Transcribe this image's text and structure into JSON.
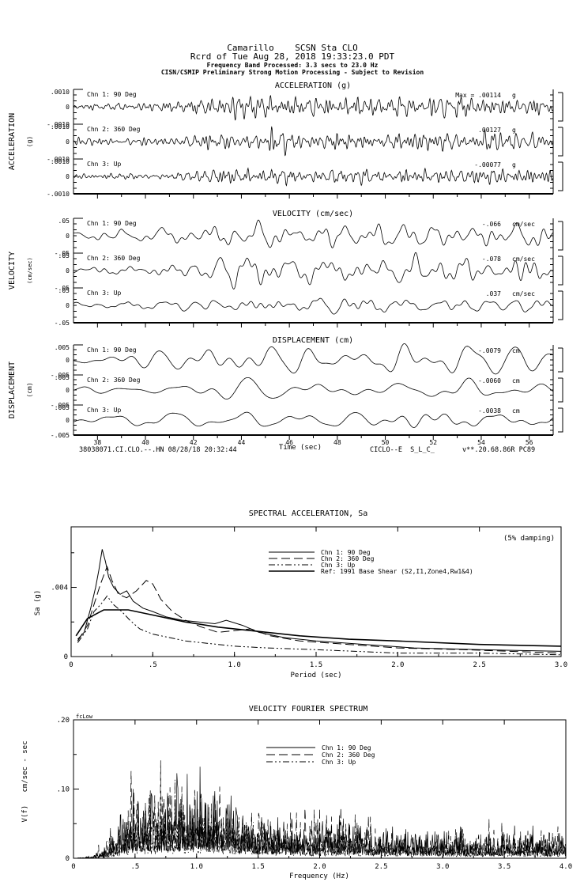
{
  "header": {
    "line1": "Camarillo    SCSN Sta CLO",
    "line2": "Rcrd of Tue Aug 28, 2018 19:33:23.0 PDT",
    "line3": "Frequency Band Processed: 3.3 secs to 23.0 Hz",
    "line4": "CISN/CSMIP Preliminary Strong Motion Processing - Subject to Revision"
  },
  "time_series": {
    "panels": [
      {
        "title": "ACCELERATION (g)",
        "side_label": "ACCELERATION",
        "side_unit": "(g)",
        "ytop": ".0010",
        "yzero": "0",
        "ybottom": "-.0010",
        "channels": [
          {
            "label": "Chn 1: 90 Deg",
            "max_prefix": "Max =  ",
            "max_value": ".00114",
            "max_unit": "g"
          },
          {
            "label": "Chn 2: 360 Deg",
            "max_prefix": "",
            "max_value": ".00127",
            "max_unit": "g"
          },
          {
            "label": "Chn 3: Up",
            "max_prefix": "",
            "max_value": "-.00077",
            "max_unit": "g"
          }
        ]
      },
      {
        "title": "VELOCITY (cm/sec)",
        "side_label": "VELOCITY",
        "side_unit": "(cm/sec)",
        "ytop": ".05",
        "yzero": "0",
        "ybottom": "-.05",
        "channels": [
          {
            "label": "Chn 1: 90 Deg",
            "max_prefix": "",
            "max_value": "-.066",
            "max_unit": "cm/sec"
          },
          {
            "label": "Chn 2: 360 Deg",
            "max_prefix": "",
            "max_value": "-.078",
            "max_unit": "cm/sec"
          },
          {
            "label": "Chn 3: Up",
            "max_prefix": "",
            "max_value": ".037",
            "max_unit": "cm/sec"
          }
        ]
      },
      {
        "title": "DISPLACEMENT (cm)",
        "side_label": "DISPLACEMENT",
        "side_unit": "(cm)",
        "ytop": ".005",
        "yzero": "0",
        "ybottom": "-.005",
        "channels": [
          {
            "label": "Chn 1: 90 Deg",
            "max_prefix": "",
            "max_value": "-.0079",
            "max_unit": "cm"
          },
          {
            "label": "Chn 2: 360 Deg",
            "max_prefix": "",
            "max_value": "-.0060",
            "max_unit": "cm"
          },
          {
            "label": "Chn 3: Up",
            "max_prefix": "",
            "max_value": "-.0038",
            "max_unit": "cm"
          }
        ]
      }
    ],
    "time_axis": {
      "label": "Time (sec)",
      "tick_labels": [
        "38",
        "40",
        "42",
        "44",
        "46",
        "48",
        "50",
        "52",
        "54",
        "56"
      ],
      "tick_values": [
        38,
        40,
        42,
        44,
        46,
        48,
        50,
        52,
        54,
        56
      ]
    }
  },
  "footer": {
    "left": "38038071.CI.CLO.--.HN 08/28/18 20:32:44",
    "center": "CICLO--E  S_L_C_",
    "right": "v**.20.68.86R PC89"
  },
  "spectral": {
    "title": "SPECTRAL ACCELERATION, Sa",
    "damping_note": "(5% damping)",
    "ylabel": "Sa (g)",
    "xlabel": "Period (sec)",
    "yticks": [
      {
        "l": "0",
        "v": 0
      },
      {
        "l": ".004",
        "v": 0.004
      }
    ],
    "yminor": [
      0.002,
      0.006
    ],
    "xticks": [
      {
        "l": "0",
        "v": 0
      },
      {
        "l": ".5",
        "v": 0.5
      },
      {
        "l": "1.0",
        "v": 1.0
      },
      {
        "l": "1.5",
        "v": 1.5
      },
      {
        "l": "2.0",
        "v": 2.0
      },
      {
        "l": "2.5",
        "v": 2.5
      },
      {
        "l": "3.0",
        "v": 3.0
      }
    ],
    "legend": [
      {
        "label": "Chn 1: 90 Deg",
        "dash": "none",
        "color": "#000",
        "width": 1
      },
      {
        "label": "Chn 2: 360 Deg",
        "dash": "long",
        "color": "#000",
        "width": 1
      },
      {
        "label": "Chn 3: Up",
        "dash": "dashdot",
        "color": "#000",
        "width": 1
      },
      {
        "label": "Ref: 1991 Base Shear (S2,I1,Zone4,Rw1&4)",
        "dash": "none",
        "color": "#666",
        "width": 1.6
      }
    ]
  },
  "fourier": {
    "title": "VELOCITY FOURIER SPECTRUM",
    "annotation": "fcLow",
    "ylabel": "V(f)   cm/sec - sec",
    "xlabel": "Frequency (Hz)",
    "yticks": [
      {
        "l": "0",
        "v": 0
      },
      {
        "l": ".10",
        "v": 0.1
      },
      {
        "l": ".20",
        "v": 0.2
      }
    ],
    "yminor": [
      0.05,
      0.15
    ],
    "xticks": [
      {
        "l": "0",
        "v": 0
      },
      {
        "l": ".5",
        "v": 0.5
      },
      {
        "l": "1.0",
        "v": 1.0
      },
      {
        "l": "1.5",
        "v": 1.5
      },
      {
        "l": "2.0",
        "v": 2.0
      },
      {
        "l": "2.5",
        "v": 2.5
      },
      {
        "l": "3.0",
        "v": 3.0
      },
      {
        "l": "3.5",
        "v": 3.5
      },
      {
        "l": "4.0",
        "v": 4.0
      }
    ],
    "legend": [
      {
        "label": "Chn 1: 90 Deg",
        "dash": "none",
        "color": "#000",
        "width": 1
      },
      {
        "label": "Chn 2: 360 Deg",
        "dash": "long",
        "color": "#000",
        "width": 1
      },
      {
        "label": "Chn 3: Up",
        "dash": "dashdot",
        "color": "#000",
        "width": 1
      }
    ]
  },
  "chart_data": [
    {
      "type": "line",
      "subtype": "seismic-waveform",
      "title": "ACCELERATION (g)",
      "xlim": [
        37,
        57
      ],
      "ylim": [
        -0.001,
        0.001
      ],
      "series": [
        {
          "name": "Chn 1: 90 Deg",
          "peak": 0.00114,
          "unit": "g"
        },
        {
          "name": "Chn 2: 360 Deg",
          "peak": 0.00127,
          "unit": "g"
        },
        {
          "name": "Chn 3: Up",
          "peak": 0.00077,
          "unit": "g"
        }
      ],
      "synthesis": {
        "band_hz": [
          2.0,
          9.0
        ],
        "seed": 7,
        "envelope": [
          [
            37,
            0.3
          ],
          [
            40,
            0.35
          ],
          [
            41.5,
            0.5
          ],
          [
            43,
            0.95
          ],
          [
            45,
            1.0
          ],
          [
            47,
            0.9
          ],
          [
            50,
            0.8
          ],
          [
            53,
            0.85
          ],
          [
            57,
            0.75
          ]
        ]
      }
    },
    {
      "type": "line",
      "subtype": "seismic-waveform",
      "title": "VELOCITY (cm/sec)",
      "xlim": [
        37,
        57
      ],
      "ylim": [
        -0.05,
        0.05
      ],
      "series": [
        {
          "name": "Chn 1: 90 Deg",
          "peak": 0.066,
          "unit": "cm/sec"
        },
        {
          "name": "Chn 2: 360 Deg",
          "peak": 0.078,
          "unit": "cm/sec"
        },
        {
          "name": "Chn 3: Up",
          "peak": 0.037,
          "unit": "cm/sec"
        }
      ],
      "synthesis": {
        "band_hz": [
          0.5,
          3.0
        ],
        "seed": 8,
        "envelope": [
          [
            37,
            0.3
          ],
          [
            40,
            0.4
          ],
          [
            42,
            0.7
          ],
          [
            44,
            1.0
          ],
          [
            46,
            0.9
          ],
          [
            49,
            0.95
          ],
          [
            52,
            0.85
          ],
          [
            57,
            0.9
          ]
        ]
      }
    },
    {
      "type": "line",
      "subtype": "seismic-waveform",
      "title": "DISPLACEMENT (cm)",
      "xlim": [
        37,
        57
      ],
      "ylim": [
        -0.005,
        0.005
      ],
      "series": [
        {
          "name": "Chn 1: 90 Deg",
          "peak": 0.0079,
          "unit": "cm"
        },
        {
          "name": "Chn 2: 360 Deg",
          "peak": 0.006,
          "unit": "cm"
        },
        {
          "name": "Chn 3: Up",
          "peak": 0.0038,
          "unit": "cm"
        }
      ],
      "synthesis": {
        "band_hz": [
          0.3,
          1.3
        ],
        "seed": 9,
        "envelope": [
          [
            37,
            0.4
          ],
          [
            40,
            0.55
          ],
          [
            41,
            0.8
          ],
          [
            43,
            1.0
          ],
          [
            45,
            0.9
          ],
          [
            48,
            0.95
          ],
          [
            51,
            1.0
          ],
          [
            54,
            0.9
          ],
          [
            57,
            0.95
          ]
        ]
      }
    },
    {
      "type": "line",
      "subtype": "response-spectrum",
      "title": "SPECTRAL ACCELERATION, Sa",
      "xlabel": "Period (sec)",
      "ylabel": "Sa (g)",
      "xlim": [
        0,
        3
      ],
      "ylim": [
        0,
        0.0075
      ],
      "damping": "5%",
      "series": [
        {
          "name": "Chn 1: 90 Deg",
          "points": [
            [
              0.04,
              0.001
            ],
            [
              0.08,
              0.0014
            ],
            [
              0.12,
              0.0028
            ],
            [
              0.15,
              0.004
            ],
            [
              0.17,
              0.005
            ],
            [
              0.19,
              0.0062
            ],
            [
              0.21,
              0.0055
            ],
            [
              0.23,
              0.0046
            ],
            [
              0.26,
              0.004
            ],
            [
              0.3,
              0.0036
            ],
            [
              0.34,
              0.0038
            ],
            [
              0.38,
              0.0032
            ],
            [
              0.44,
              0.0028
            ],
            [
              0.5,
              0.0026
            ],
            [
              0.58,
              0.0023
            ],
            [
              0.68,
              0.0021
            ],
            [
              0.78,
              0.002
            ],
            [
              0.88,
              0.0019
            ],
            [
              0.95,
              0.0021
            ],
            [
              1.05,
              0.0018
            ],
            [
              1.15,
              0.0014
            ],
            [
              1.3,
              0.0011
            ],
            [
              1.5,
              0.0009
            ],
            [
              1.8,
              0.0007
            ],
            [
              2.1,
              0.0005
            ],
            [
              2.5,
              0.0004
            ],
            [
              3.0,
              0.0003
            ]
          ]
        },
        {
          "name": "Chn 2: 360 Deg",
          "points": [
            [
              0.04,
              0.0009
            ],
            [
              0.1,
              0.0018
            ],
            [
              0.14,
              0.003
            ],
            [
              0.18,
              0.0042
            ],
            [
              0.22,
              0.0052
            ],
            [
              0.25,
              0.0044
            ],
            [
              0.29,
              0.0036
            ],
            [
              0.34,
              0.0034
            ],
            [
              0.4,
              0.0038
            ],
            [
              0.46,
              0.0044
            ],
            [
              0.5,
              0.0042
            ],
            [
              0.55,
              0.0033
            ],
            [
              0.62,
              0.0026
            ],
            [
              0.7,
              0.0021
            ],
            [
              0.8,
              0.0017
            ],
            [
              0.9,
              0.0014
            ],
            [
              1.0,
              0.0015
            ],
            [
              1.1,
              0.0016
            ],
            [
              1.22,
              0.0012
            ],
            [
              1.4,
              0.0009
            ],
            [
              1.7,
              0.0007
            ],
            [
              2.0,
              0.0005
            ],
            [
              2.4,
              0.0004
            ],
            [
              3.0,
              0.0002
            ]
          ]
        },
        {
          "name": "Chn 3: Up",
          "points": [
            [
              0.04,
              0.0008
            ],
            [
              0.1,
              0.0016
            ],
            [
              0.14,
              0.0026
            ],
            [
              0.18,
              0.003
            ],
            [
              0.22,
              0.0035
            ],
            [
              0.26,
              0.003
            ],
            [
              0.31,
              0.0026
            ],
            [
              0.36,
              0.0021
            ],
            [
              0.42,
              0.0016
            ],
            [
              0.5,
              0.0013
            ],
            [
              0.6,
              0.0011
            ],
            [
              0.7,
              0.0009
            ],
            [
              0.8,
              0.0008
            ],
            [
              0.9,
              0.0007
            ],
            [
              1.0,
              0.0006
            ],
            [
              1.2,
              0.0005
            ],
            [
              1.5,
              0.0004
            ],
            [
              2.0,
              0.0002
            ],
            [
              2.5,
              0.0002
            ],
            [
              3.0,
              0.0001
            ]
          ]
        },
        {
          "name": "Ref: 1991 Base Shear (S2,I1,Zone4,Rw1&4)",
          "points": [
            [
              0.03,
              0.0012
            ],
            [
              0.1,
              0.0022
            ],
            [
              0.2,
              0.0027
            ],
            [
              0.35,
              0.0027
            ],
            [
              0.5,
              0.0024
            ],
            [
              0.7,
              0.002
            ],
            [
              0.9,
              0.0017
            ],
            [
              1.1,
              0.0015
            ],
            [
              1.4,
              0.0012
            ],
            [
              1.7,
              0.001
            ],
            [
              2.0,
              0.0009
            ],
            [
              2.5,
              0.0007
            ],
            [
              3.0,
              0.0006
            ]
          ]
        }
      ]
    },
    {
      "type": "line",
      "subtype": "fourier-spectrum",
      "title": "VELOCITY FOURIER SPECTRUM",
      "xlabel": "Frequency (Hz)",
      "ylabel": "V(f) cm/sec - sec",
      "xlim": [
        0,
        4
      ],
      "ylim": [
        0,
        0.2
      ],
      "series": [
        {
          "name": "Chn 1: 90 Deg",
          "seed": 101,
          "envelope": [
            [
              0,
              0
            ],
            [
              0.15,
              0.002
            ],
            [
              0.25,
              0.008
            ],
            [
              0.35,
              0.03
            ],
            [
              0.45,
              0.055
            ],
            [
              0.55,
              0.06
            ],
            [
              0.7,
              0.065
            ],
            [
              0.9,
              0.07
            ],
            [
              1.1,
              0.065
            ],
            [
              1.3,
              0.05
            ],
            [
              1.5,
              0.035
            ],
            [
              1.8,
              0.03
            ],
            [
              2.1,
              0.03
            ],
            [
              2.4,
              0.028
            ],
            [
              2.7,
              0.022
            ],
            [
              3.0,
              0.022
            ],
            [
              3.3,
              0.02
            ],
            [
              3.6,
              0.022
            ],
            [
              4.0,
              0.02
            ]
          ]
        },
        {
          "name": "Chn 2: 360 Deg",
          "seed": 202,
          "envelope": [
            [
              0,
              0
            ],
            [
              0.15,
              0.002
            ],
            [
              0.25,
              0.01
            ],
            [
              0.35,
              0.035
            ],
            [
              0.5,
              0.06
            ],
            [
              0.7,
              0.065
            ],
            [
              0.9,
              0.068
            ],
            [
              1.1,
              0.06
            ],
            [
              1.3,
              0.045
            ],
            [
              1.6,
              0.035
            ],
            [
              1.9,
              0.04
            ],
            [
              2.15,
              0.05
            ],
            [
              2.35,
              0.04
            ],
            [
              2.6,
              0.025
            ],
            [
              3.0,
              0.022
            ],
            [
              3.4,
              0.025
            ],
            [
              3.7,
              0.028
            ],
            [
              4.0,
              0.025
            ]
          ]
        },
        {
          "name": "Chn 3: Up",
          "seed": 303,
          "envelope": [
            [
              0,
              0
            ],
            [
              0.15,
              0.001
            ],
            [
              0.25,
              0.006
            ],
            [
              0.35,
              0.02
            ],
            [
              0.5,
              0.035
            ],
            [
              0.7,
              0.04
            ],
            [
              0.9,
              0.042
            ],
            [
              1.1,
              0.04
            ],
            [
              1.3,
              0.035
            ],
            [
              1.6,
              0.025
            ],
            [
              2.0,
              0.022
            ],
            [
              2.4,
              0.02
            ],
            [
              2.8,
              0.016
            ],
            [
              3.2,
              0.015
            ],
            [
              3.6,
              0.015
            ],
            [
              4.0,
              0.014
            ]
          ]
        }
      ]
    }
  ]
}
